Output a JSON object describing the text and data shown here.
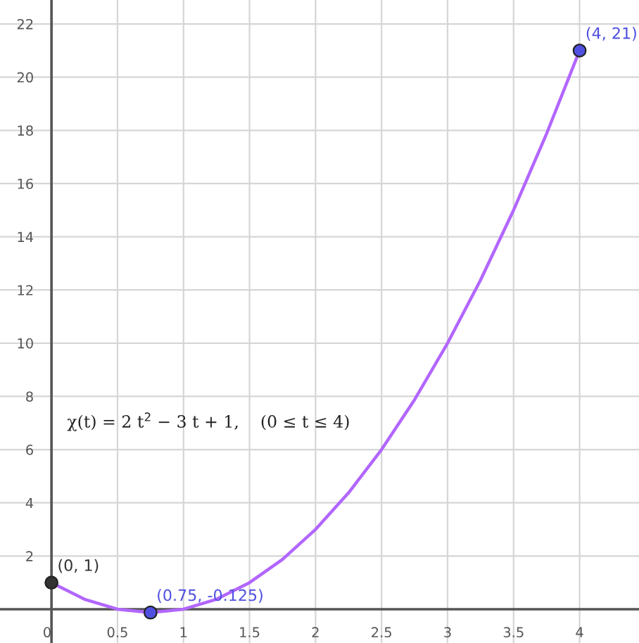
{
  "chart_data": {
    "type": "line",
    "x": [
      0,
      0.25,
      0.5,
      0.75,
      1,
      1.25,
      1.5,
      1.75,
      2,
      2.25,
      2.5,
      2.75,
      3,
      3.25,
      3.5,
      3.75,
      4
    ],
    "series": [
      {
        "color": "#b266ff",
        "values": [
          1,
          0.375,
          0,
          -0.125,
          0,
          0.375,
          1,
          1.875,
          3,
          4.375,
          6,
          7.875,
          10,
          12.375,
          15,
          17.875,
          21
        ]
      },
      {
        "type": "scatter",
        "color": "#333333",
        "marker": "circle",
        "x": [
          0
        ],
        "values": [
          1
        ]
      },
      {
        "type": "scatter",
        "color": "#5050e0",
        "marker": "circle",
        "x": [
          0.75,
          4
        ],
        "values": [
          -0.125,
          21
        ]
      }
    ],
    "annotations": [
      {
        "text": "(0, 1)",
        "x": 0,
        "y": 1
      },
      {
        "text": "(0.75, -0.125)",
        "x": 0.75,
        "y": -0.125
      },
      {
        "text": "(4, 21)",
        "x": 4,
        "y": 21
      },
      "χ(t) = 2 t$^{2}$ − 3 t + 1,    (0 ≤ t ≤ 4)"
    ],
    "xlim": [
      -0.39,
      4.45
    ],
    "ylim": [
      -1.27,
      22.9
    ],
    "xticks": [
      0,
      0.5,
      1,
      1.5,
      2,
      2.5,
      3,
      3.5,
      4
    ],
    "yticks": [
      2,
      4,
      6,
      8,
      10,
      12,
      14,
      16,
      18,
      20,
      22
    ],
    "grid": true,
    "legend": false,
    "marker": "none",
    "line_style": "solid"
  }
}
